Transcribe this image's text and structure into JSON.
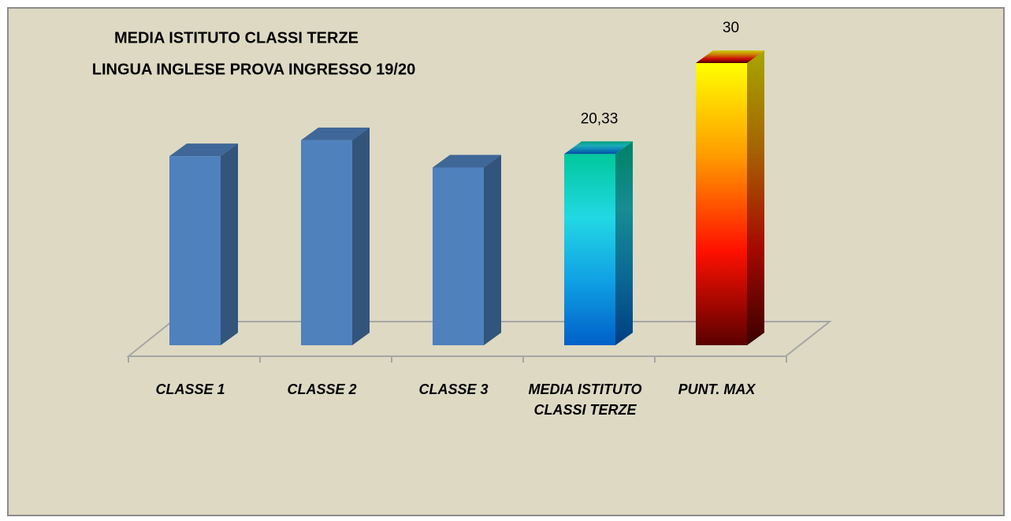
{
  "chart_data": {
    "type": "bar3d",
    "title": "MEDIA ISTITUTO CLASSI TERZE",
    "subtitle": "LINGUA INGLESE PROVA INGRESSO 19/20",
    "categories": [
      "CLASSE 1",
      "CLASSE 2",
      "CLASSE 3",
      "MEDIA ISTITUTO CLASSI TERZE",
      "PUNT. MAX"
    ],
    "values": [
      20.1,
      21.8,
      18.9,
      20.33,
      30
    ],
    "value_labels": [
      null,
      null,
      null,
      "20,33",
      "30"
    ],
    "colors": [
      [
        "#4f81bd"
      ],
      [
        "#4f81bd"
      ],
      [
        "#4f81bd"
      ],
      [
        "#00c89c",
        "#22d8e4",
        "#10a0e4",
        "#0060c8"
      ],
      [
        "#ffff00",
        "#ff9a00",
        "#ff1000",
        "#5a0000"
      ]
    ],
    "ylim": [
      0,
      30
    ]
  }
}
